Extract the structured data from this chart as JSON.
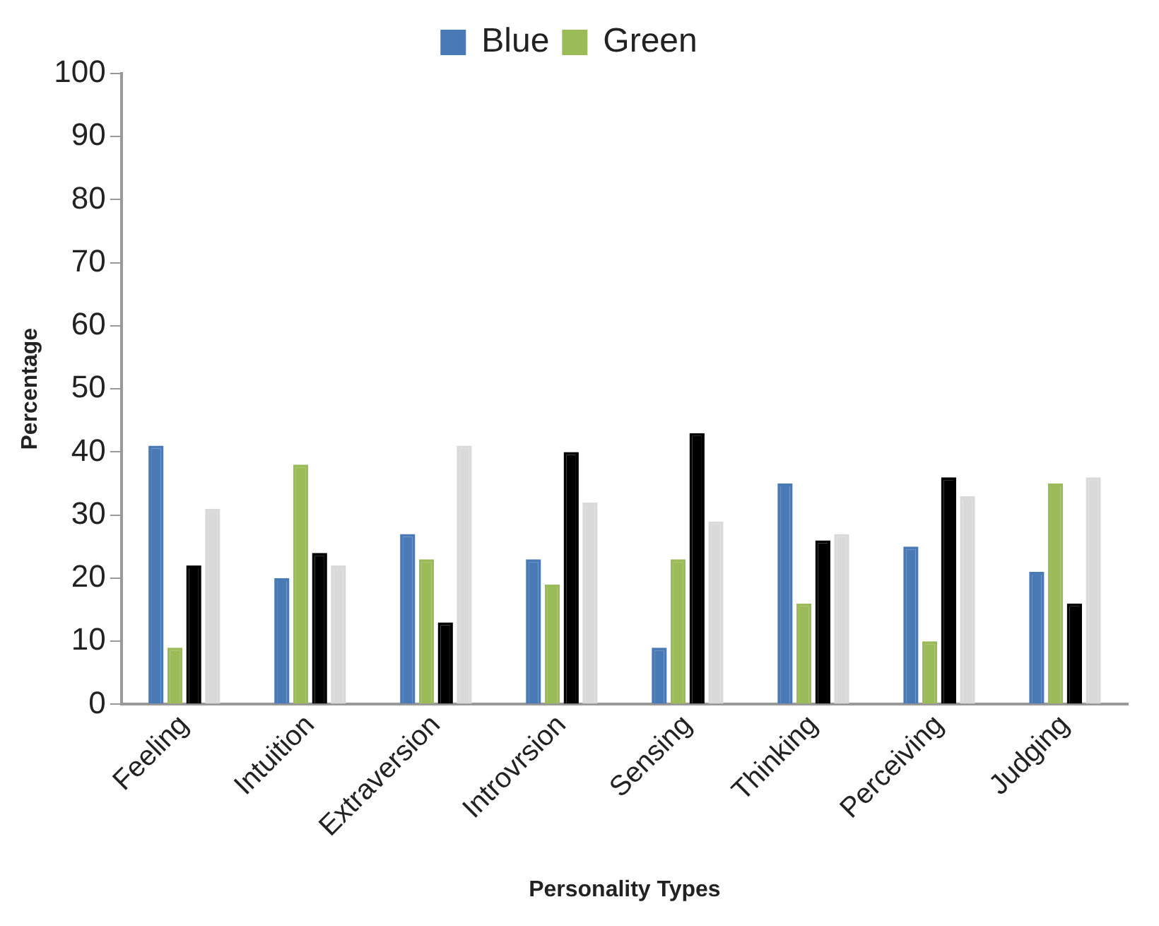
{
  "chart_data": {
    "type": "bar",
    "xlabel": "Personality Types",
    "ylabel": "Percentage",
    "categories": [
      "Feeling",
      "Intuition",
      "Extraversion",
      "Introvrsion",
      "Sensing",
      "Thinking",
      "Perceiving",
      "Judging"
    ],
    "series": [
      {
        "name": "Blue",
        "color": "#4a7ab5",
        "values": [
          41,
          20,
          27,
          23,
          9,
          35,
          25,
          21
        ]
      },
      {
        "name": "Green",
        "color": "#9bbb59",
        "values": [
          9,
          38,
          23,
          19,
          23,
          16,
          10,
          35
        ]
      },
      {
        "color": "#000000",
        "values": [
          22,
          24,
          13,
          40,
          43,
          26,
          36,
          16
        ]
      },
      {
        "color": "#d9d9d9",
        "values": [
          31,
          22,
          41,
          32,
          29,
          27,
          33,
          36
        ]
      }
    ],
    "ylim": [
      0,
      100
    ],
    "yticks": [
      0,
      10,
      20,
      30,
      40,
      50,
      60,
      70,
      80,
      90,
      100
    ],
    "grid": false,
    "legend": "top"
  }
}
